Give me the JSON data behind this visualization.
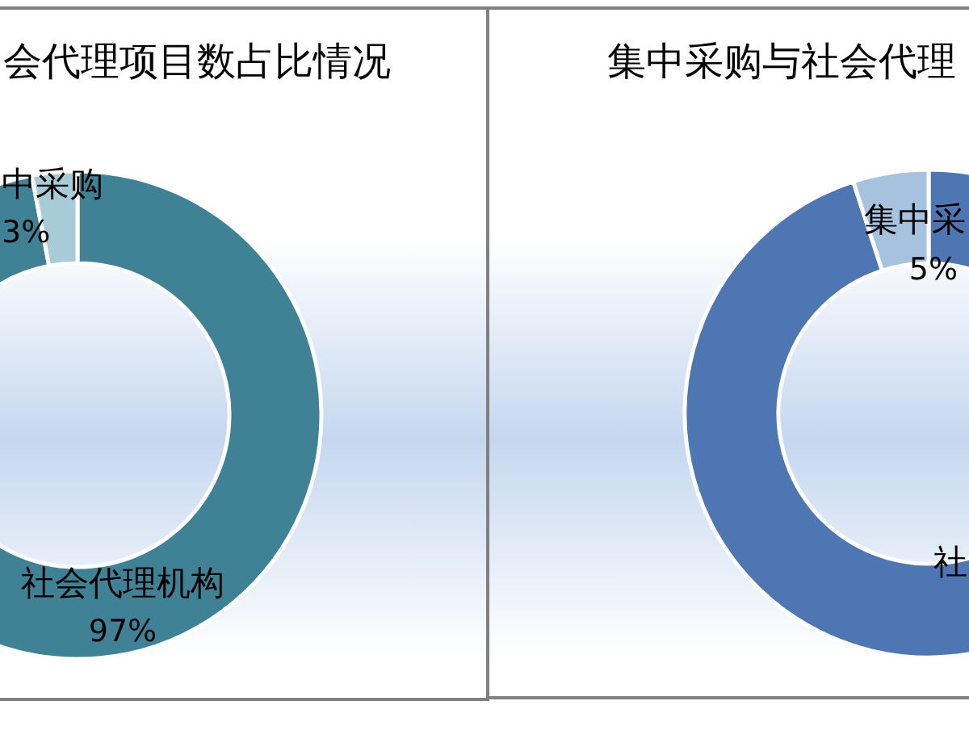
{
  "chart_data": [
    {
      "type": "donut",
      "title": "会代理项目数占比情况",
      "categories": [
        "社会代理机构",
        "中采购"
      ],
      "values": [
        97,
        3
      ],
      "colors": [
        "#3f8296",
        "#a8cbd8"
      ],
      "value_labels": [
        "97%",
        "3%"
      ]
    },
    {
      "type": "donut",
      "title": "集中采购与社会代理",
      "categories": [
        "社",
        "集中采"
      ],
      "values": [
        95,
        5
      ],
      "colors": [
        "#4d76b2",
        "#a6c2df"
      ],
      "value_labels": [
        null,
        "5%"
      ]
    }
  ]
}
